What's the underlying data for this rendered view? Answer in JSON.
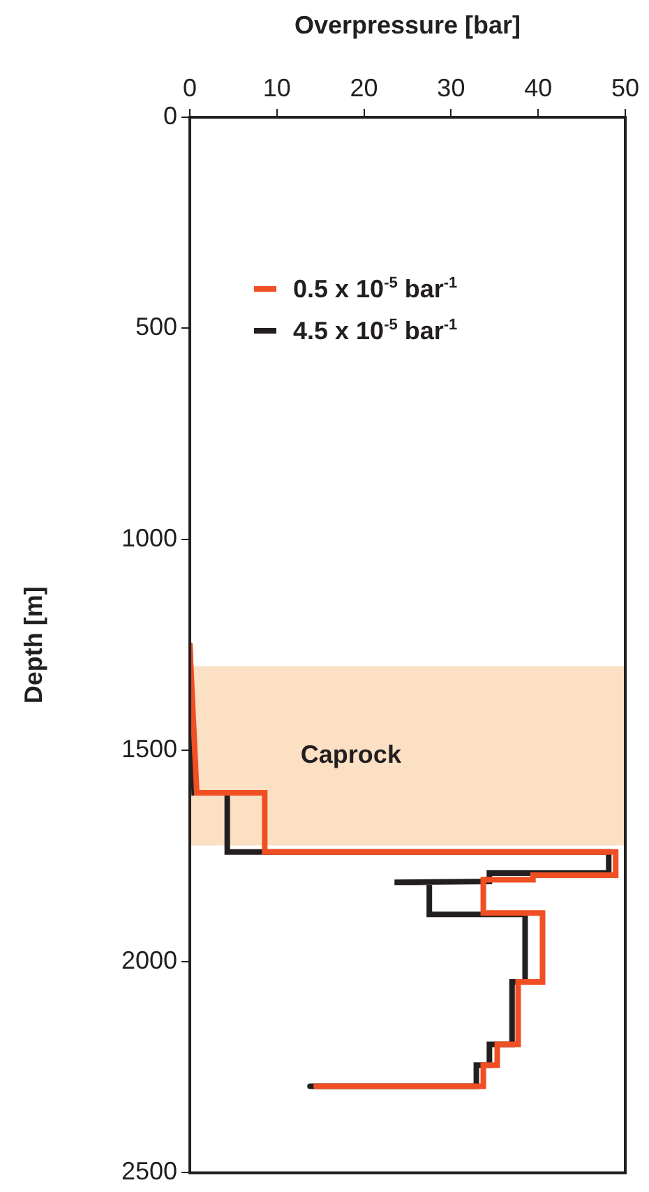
{
  "chart_data": {
    "type": "line",
    "xlabel": "Overpressure [bar]",
    "ylabel": "Depth [m]",
    "xlim": [
      0,
      50
    ],
    "xticks": [
      0,
      10,
      20,
      30,
      40,
      50
    ],
    "ylim": [
      2500,
      0
    ],
    "yticks": [
      0,
      500,
      1000,
      1500,
      2000,
      2500
    ],
    "grid": false,
    "legend": "top",
    "marker": "none",
    "bands": [
      {
        "axis": "y",
        "from": 1300,
        "to": 1725,
        "label": "Caprock",
        "color": "#fce0c4"
      }
    ],
    "series": [
      {
        "name": "0.5 x 10$^{-5}$ bar$^{-1}$",
        "color": "#f04e23",
        "x": [
          0,
          0.8,
          8.6,
          8.6,
          48.9,
          48.9,
          39.4,
          39.4,
          33.7,
          33.7,
          40.5,
          40.5,
          37.7,
          37.7,
          35.3,
          35.3,
          33.7,
          33.7,
          14.5
        ],
        "values": [
          1250,
          1600,
          1600,
          1740,
          1740,
          1795,
          1795,
          1806,
          1806,
          1885,
          1885,
          2048,
          2048,
          2196,
          2196,
          2245,
          2245,
          2295,
          2295
        ]
      },
      {
        "name": "4.5 x 10$^{-5}$ bar$^{-1}$",
        "color": "#231f20",
        "x": [
          0,
          0.5,
          4.3,
          4.3,
          48.1,
          48.1,
          34.4,
          34.4,
          23.5,
          27.5,
          27.5,
          38.5,
          38.5,
          37,
          37,
          34.4,
          34.4,
          32.9,
          32.9,
          13.8
        ],
        "values": [
          1250,
          1600,
          1600,
          1740,
          1740,
          1790,
          1790,
          1810,
          1812,
          1812,
          1888,
          1888,
          2048,
          2048,
          2196,
          2196,
          2245,
          2245,
          2295,
          2295
        ]
      }
    ]
  }
}
